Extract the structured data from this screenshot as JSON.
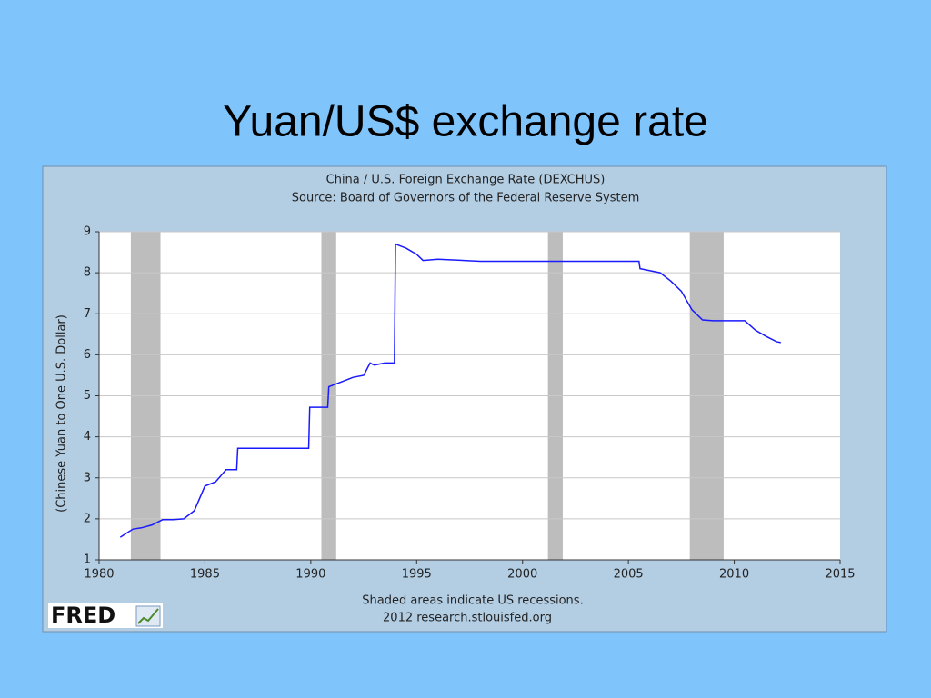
{
  "slide_title": "Yuan/US$ exchange rate",
  "chart_data": {
    "type": "line",
    "title": "China / U.S. Foreign Exchange Rate (DEXCHUS)",
    "subtitle": "Source: Board of Governors of the Federal Reserve System",
    "y_label": "(Chinese Yuan to One U.S. Dollar)",
    "notes": [
      "Shaded areas indicate US recessions.",
      "2012 research.stlouisfed.org"
    ],
    "logo": "FRED",
    "color": "#1a1aff",
    "grid": true,
    "xlim": [
      1980,
      2015
    ],
    "xticks": [
      1980,
      1985,
      1990,
      1995,
      2000,
      2005,
      2010,
      2015
    ],
    "ylim": [
      1,
      9
    ],
    "yticks": [
      1,
      2,
      3,
      4,
      5,
      6,
      7,
      8,
      9
    ],
    "recessions": [
      [
        1981.5,
        1982.9
      ],
      [
        1990.5,
        1991.2
      ],
      [
        2001.2,
        2001.9
      ],
      [
        2007.9,
        2009.5
      ]
    ],
    "x": [
      1981.0,
      1981.3,
      1981.6,
      1982.0,
      1982.5,
      1983.0,
      1983.5,
      1984.0,
      1984.5,
      1985.0,
      1985.5,
      1986.0,
      1986.5,
      1986.55,
      1989.9,
      1989.95,
      1990.8,
      1990.85,
      1991.5,
      1992.0,
      1992.5,
      1992.8,
      1993.0,
      1993.5,
      1993.95,
      1994.0,
      1994.5,
      1995.0,
      1995.3,
      1996.0,
      1998.0,
      2005.5,
      2005.55,
      2006.5,
      2007.0,
      2007.5,
      2008.0,
      2008.5,
      2009.0,
      2010.5,
      2011.0,
      2011.5,
      2012.0,
      2012.2
    ],
    "values": [
      1.55,
      1.65,
      1.75,
      1.78,
      1.85,
      1.98,
      1.98,
      2.0,
      2.2,
      2.8,
      2.9,
      3.2,
      3.2,
      3.72,
      3.72,
      4.72,
      4.72,
      5.22,
      5.35,
      5.45,
      5.5,
      5.8,
      5.75,
      5.8,
      5.8,
      8.7,
      8.6,
      8.45,
      8.3,
      8.33,
      8.28,
      8.28,
      8.1,
      8.0,
      7.8,
      7.55,
      7.1,
      6.85,
      6.83,
      6.83,
      6.6,
      6.45,
      6.32,
      6.3
    ]
  }
}
